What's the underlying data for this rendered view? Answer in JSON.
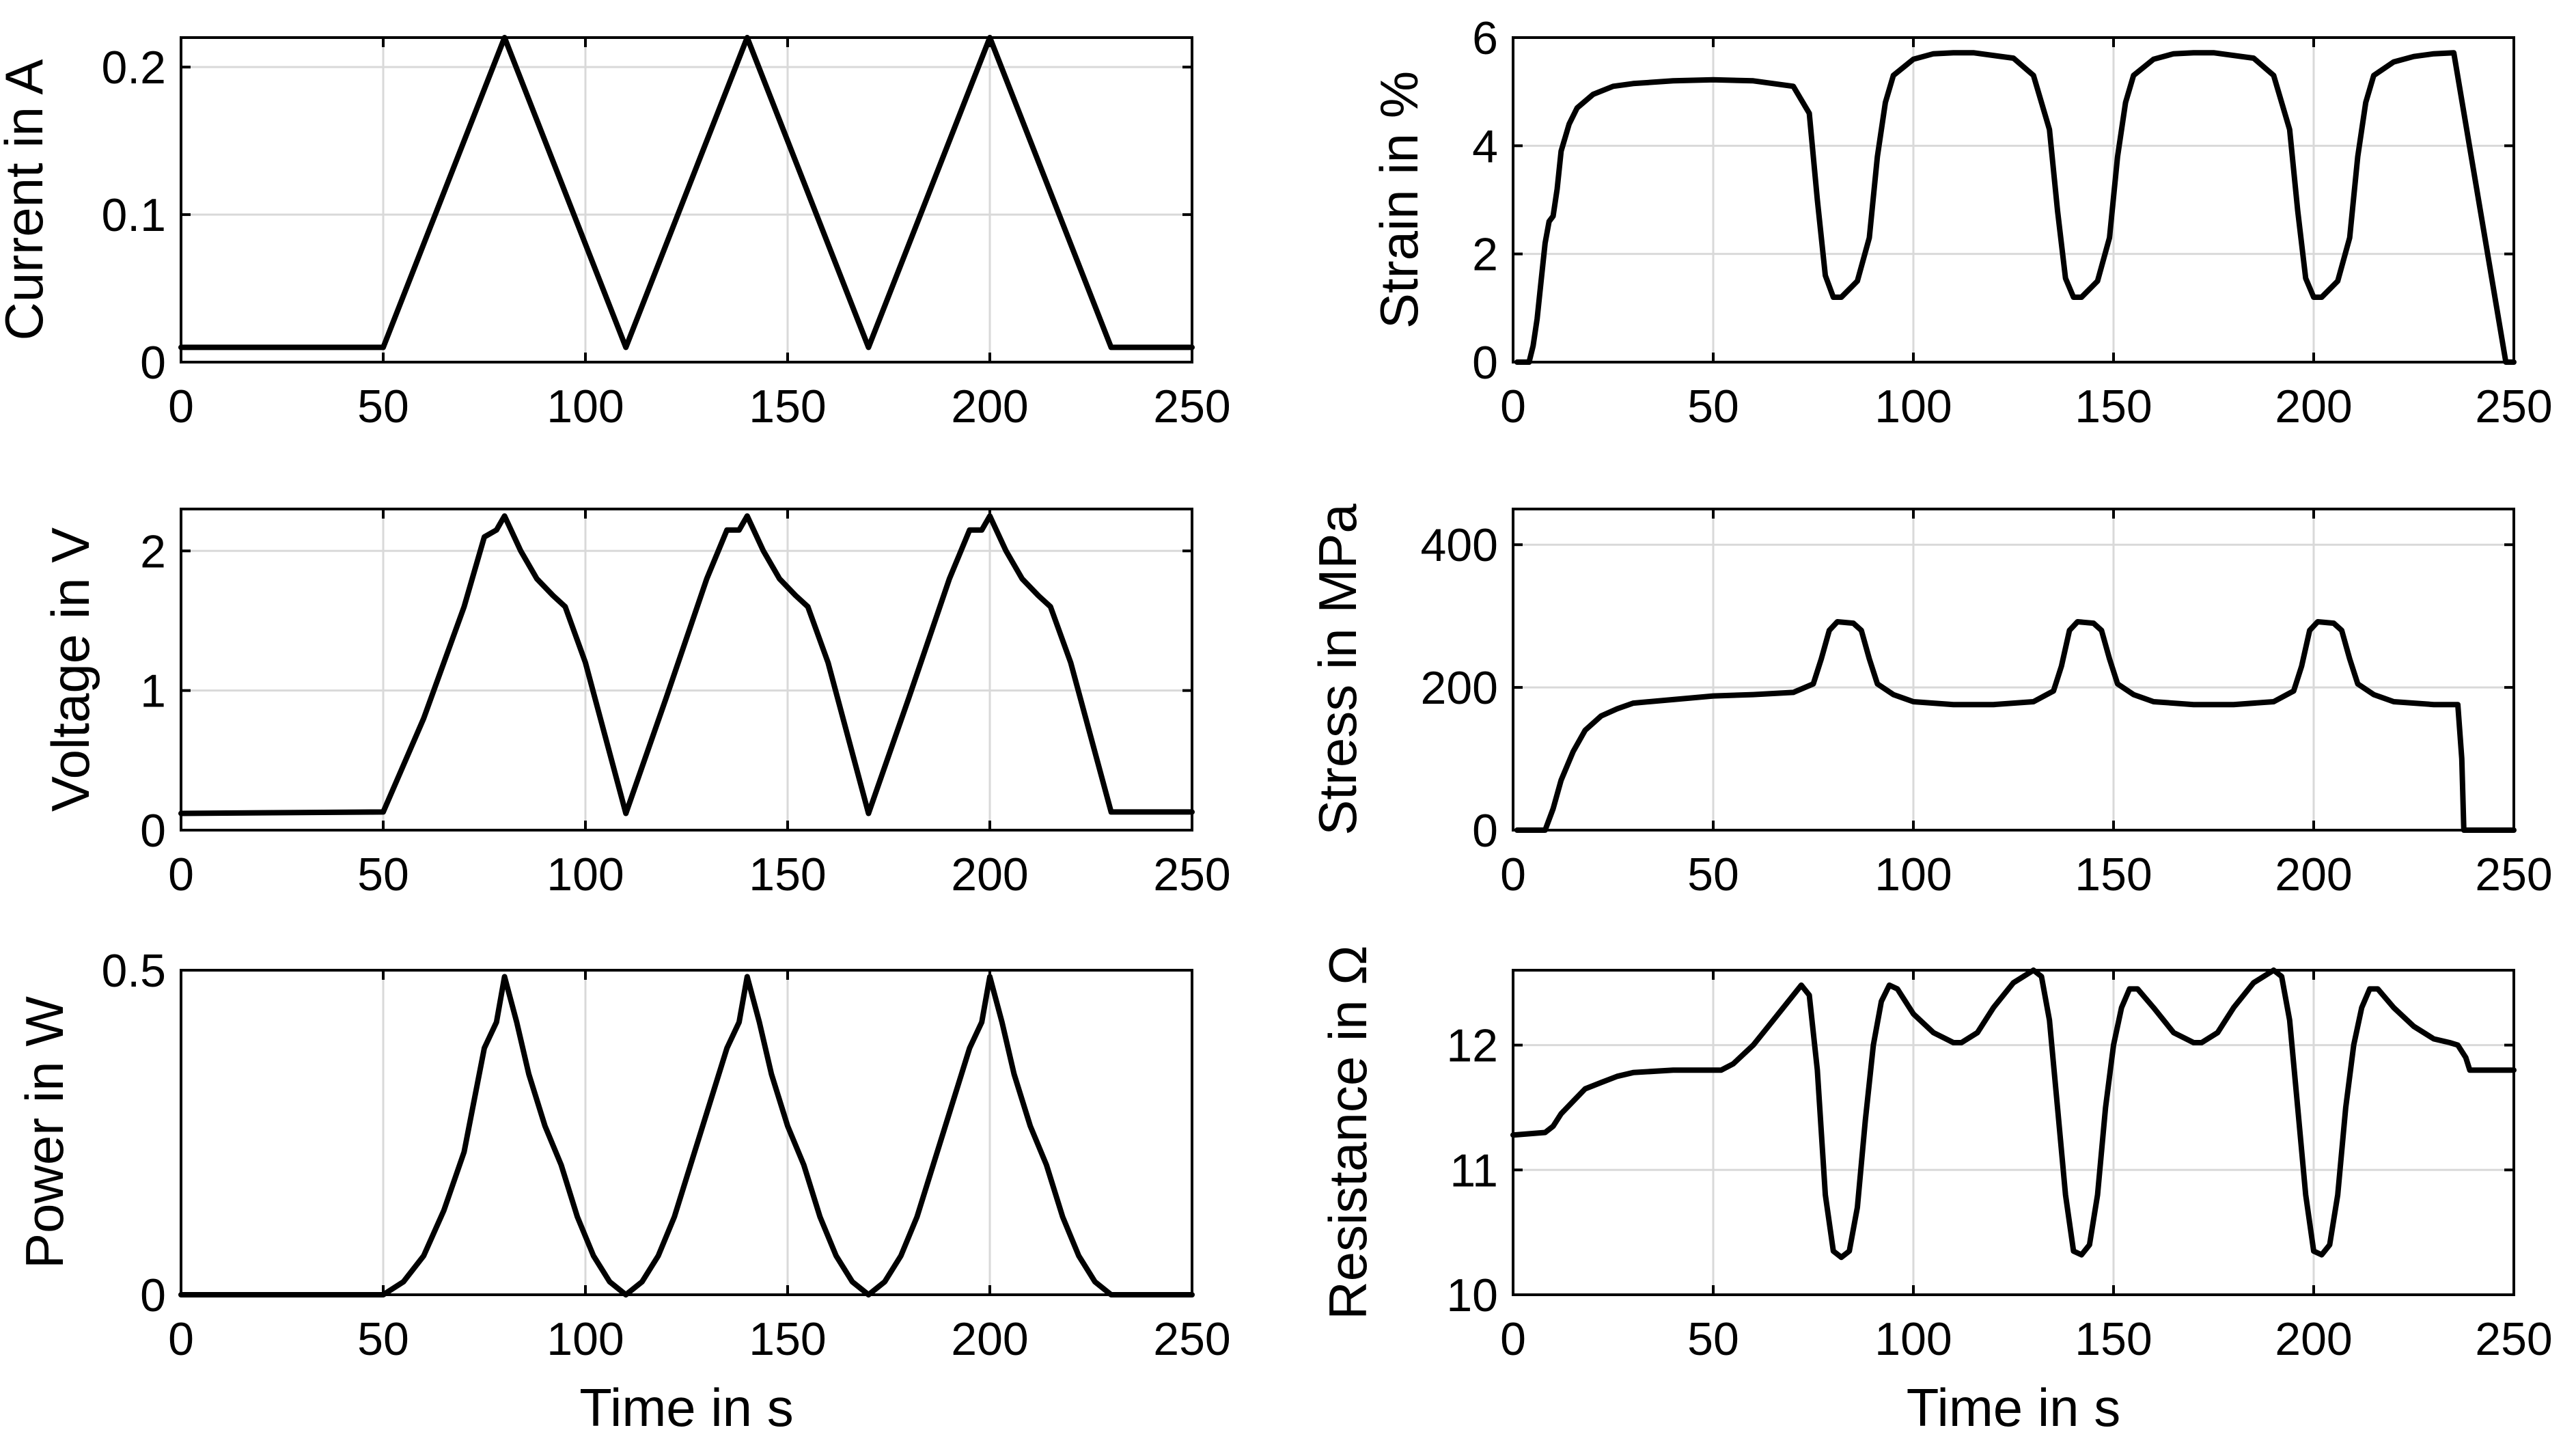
{
  "chart_data": [
    {
      "id": "current",
      "type": "line",
      "title": "",
      "xlabel": "",
      "ylabel": "Current in A",
      "xlim": [
        0,
        250
      ],
      "ylim": [
        0,
        0.22
      ],
      "xticks": [
        0,
        50,
        100,
        150,
        200,
        250
      ],
      "xtick_labels": [
        "0",
        "50",
        "100",
        "150",
        "200",
        "250"
      ],
      "yticks": [
        0,
        0.1,
        0.2
      ],
      "ytick_labels": [
        "0",
        "0.1",
        "0.2"
      ],
      "grid": true,
      "series": [
        {
          "name": "Current",
          "color": "#000000",
          "x": [
            0,
            50,
            80,
            110,
            140,
            170,
            200,
            230,
            250
          ],
          "y": [
            0.01,
            0.01,
            0.22,
            0.01,
            0.22,
            0.01,
            0.22,
            0.01,
            0.01
          ]
        }
      ]
    },
    {
      "id": "strain",
      "type": "line",
      "title": "",
      "xlabel": "",
      "ylabel": "Strain in %",
      "xlim": [
        0,
        250
      ],
      "ylim": [
        0,
        6
      ],
      "xticks": [
        0,
        50,
        100,
        150,
        200,
        250
      ],
      "xtick_labels": [
        "0",
        "50",
        "100",
        "150",
        "200",
        "250"
      ],
      "yticks": [
        0,
        2,
        4,
        6
      ],
      "ytick_labels": [
        "0",
        "2",
        "4",
        "6"
      ],
      "grid": true,
      "series": [
        {
          "name": "Strain",
          "color": "#000000",
          "x": [
            1,
            4,
            5,
            6,
            7,
            8,
            9,
            10,
            11,
            12,
            14,
            16,
            20,
            25,
            30,
            40,
            50,
            60,
            70,
            74,
            76,
            78,
            80,
            82,
            86,
            89,
            91,
            93,
            95,
            100,
            105,
            110,
            115,
            125,
            130,
            134,
            136,
            138,
            140,
            142,
            146,
            149,
            151,
            153,
            155,
            160,
            165,
            170,
            175,
            185,
            190,
            194,
            196,
            198,
            200,
            202,
            206,
            209,
            211,
            213,
            215,
            220,
            225,
            230,
            235,
            248,
            250
          ],
          "y": [
            0,
            0,
            0.3,
            0.8,
            1.5,
            2.2,
            2.6,
            2.7,
            3.2,
            3.9,
            4.4,
            4.7,
            4.95,
            5.1,
            5.15,
            5.2,
            5.22,
            5.2,
            5.1,
            4.6,
            3.0,
            1.6,
            1.2,
            1.2,
            1.5,
            2.3,
            3.8,
            4.8,
            5.3,
            5.6,
            5.7,
            5.72,
            5.72,
            5.62,
            5.3,
            4.3,
            2.8,
            1.55,
            1.2,
            1.2,
            1.5,
            2.3,
            3.8,
            4.8,
            5.3,
            5.6,
            5.7,
            5.72,
            5.72,
            5.62,
            5.3,
            4.3,
            2.8,
            1.55,
            1.2,
            1.2,
            1.5,
            2.3,
            3.8,
            4.8,
            5.3,
            5.55,
            5.65,
            5.7,
            5.72,
            0,
            0
          ]
        }
      ]
    },
    {
      "id": "voltage",
      "type": "line",
      "title": "",
      "xlabel": "",
      "ylabel": "Voltage in V",
      "xlim": [
        0,
        250
      ],
      "ylim": [
        0,
        2.3
      ],
      "xticks": [
        0,
        50,
        100,
        150,
        200,
        250
      ],
      "xtick_labels": [
        "0",
        "50",
        "100",
        "150",
        "200",
        "250"
      ],
      "yticks": [
        0,
        1,
        2
      ],
      "ytick_labels": [
        "0",
        "1",
        "2"
      ],
      "grid": true,
      "series": [
        {
          "name": "Voltage",
          "color": "#000000",
          "x": [
            0,
            50,
            60,
            70,
            75,
            78,
            80,
            84,
            88,
            92,
            95,
            100,
            110,
            120,
            130,
            135,
            138,
            140,
            144,
            148,
            152,
            155,
            160,
            170,
            180,
            190,
            195,
            198,
            200,
            204,
            208,
            212,
            215,
            220,
            230,
            250
          ],
          "y": [
            0.12,
            0.13,
            0.8,
            1.6,
            2.1,
            2.15,
            2.25,
            2.0,
            1.8,
            1.68,
            1.6,
            1.2,
            0.12,
            0.95,
            1.8,
            2.15,
            2.15,
            2.25,
            2.0,
            1.8,
            1.68,
            1.6,
            1.2,
            0.12,
            0.95,
            1.8,
            2.15,
            2.15,
            2.25,
            2.0,
            1.8,
            1.68,
            1.6,
            1.2,
            0.13,
            0.13
          ]
        }
      ]
    },
    {
      "id": "stress",
      "type": "line",
      "title": "",
      "xlabel": "",
      "ylabel": "Stress in MPa",
      "xlim": [
        0,
        250
      ],
      "ylim": [
        0,
        450
      ],
      "xticks": [
        0,
        50,
        100,
        150,
        200,
        250
      ],
      "xtick_labels": [
        "0",
        "50",
        "100",
        "150",
        "200",
        "250"
      ],
      "yticks": [
        0,
        200,
        400
      ],
      "ytick_labels": [
        "0",
        "200",
        "400"
      ],
      "grid": true,
      "series": [
        {
          "name": "Stress",
          "color": "#000000",
          "x": [
            1,
            8,
            10,
            12,
            15,
            18,
            22,
            26,
            30,
            40,
            50,
            60,
            70,
            75,
            77,
            79,
            81,
            85,
            87,
            89,
            91,
            95,
            100,
            110,
            120,
            130,
            135,
            137,
            139,
            141,
            145,
            147,
            149,
            151,
            155,
            160,
            170,
            180,
            190,
            195,
            197,
            199,
            201,
            205,
            207,
            209,
            211,
            215,
            220,
            230,
            236,
            237,
            237.5,
            250
          ],
          "y": [
            0,
            0,
            30,
            70,
            110,
            140,
            160,
            170,
            178,
            183,
            188,
            190,
            193,
            205,
            240,
            280,
            292,
            290,
            280,
            240,
            205,
            190,
            180,
            176,
            176,
            180,
            195,
            230,
            280,
            292,
            290,
            280,
            240,
            205,
            190,
            180,
            176,
            176,
            180,
            195,
            230,
            280,
            292,
            290,
            280,
            240,
            205,
            190,
            180,
            176,
            176,
            100,
            0,
            0
          ]
        }
      ]
    },
    {
      "id": "power",
      "type": "line",
      "title": "",
      "xlabel": "Time in s",
      "ylabel": "Power in W",
      "xlim": [
        0,
        250
      ],
      "ylim": [
        0,
        0.5
      ],
      "xticks": [
        0,
        50,
        100,
        150,
        200,
        250
      ],
      "xtick_labels": [
        "0",
        "50",
        "100",
        "150",
        "200",
        "250"
      ],
      "yticks": [
        0,
        0.5
      ],
      "ytick_labels": [
        "0",
        "0.5"
      ],
      "grid": true,
      "series": [
        {
          "name": "Power",
          "color": "#000000",
          "x": [
            0,
            50,
            55,
            60,
            65,
            70,
            75,
            78,
            80,
            83,
            86,
            90,
            94,
            98,
            102,
            106,
            110,
            114,
            118,
            122,
            126,
            130,
            135,
            138,
            140,
            143,
            146,
            150,
            154,
            158,
            162,
            166,
            170,
            174,
            178,
            182,
            186,
            190,
            195,
            198,
            200,
            203,
            206,
            210,
            214,
            218,
            222,
            226,
            230,
            250
          ],
          "y": [
            0,
            0,
            0.02,
            0.06,
            0.13,
            0.22,
            0.38,
            0.42,
            0.49,
            0.42,
            0.34,
            0.26,
            0.2,
            0.12,
            0.06,
            0.02,
            0,
            0.02,
            0.06,
            0.12,
            0.2,
            0.28,
            0.38,
            0.42,
            0.49,
            0.42,
            0.34,
            0.26,
            0.2,
            0.12,
            0.06,
            0.02,
            0,
            0.02,
            0.06,
            0.12,
            0.2,
            0.28,
            0.38,
            0.42,
            0.49,
            0.42,
            0.34,
            0.26,
            0.2,
            0.12,
            0.06,
            0.02,
            0,
            0
          ]
        }
      ]
    },
    {
      "id": "resistance",
      "type": "line",
      "title": "",
      "xlabel": "Time in s",
      "ylabel": "Resistance in Ω",
      "xlim": [
        0,
        250
      ],
      "ylim": [
        10,
        12.6
      ],
      "xticks": [
        0,
        50,
        100,
        150,
        200,
        250
      ],
      "xtick_labels": [
        "0",
        "50",
        "100",
        "150",
        "200",
        "250"
      ],
      "yticks": [
        10,
        11,
        12
      ],
      "ytick_labels": [
        "10",
        "11",
        "12"
      ],
      "grid": true,
      "series": [
        {
          "name": "Resistance",
          "color": "#000000",
          "x": [
            0,
            8,
            10,
            12,
            15,
            18,
            22,
            26,
            30,
            40,
            50,
            52,
            55,
            60,
            65,
            70,
            72,
            74,
            76,
            78,
            80,
            82,
            84,
            86,
            88,
            90,
            92,
            94,
            96,
            100,
            105,
            110,
            112,
            116,
            120,
            125,
            130,
            132,
            134,
            136,
            138,
            140,
            142,
            144,
            146,
            148,
            150,
            152,
            154,
            156,
            160,
            165,
            170,
            172,
            176,
            180,
            185,
            190,
            192,
            194,
            196,
            198,
            200,
            202,
            204,
            206,
            208,
            210,
            212,
            214,
            216,
            220,
            225,
            230,
            234,
            236,
            238,
            239,
            240,
            250
          ],
          "y": [
            11.28,
            11.3,
            11.35,
            11.45,
            11.55,
            11.65,
            11.7,
            11.75,
            11.78,
            11.8,
            11.8,
            11.8,
            11.85,
            12.0,
            12.2,
            12.4,
            12.48,
            12.4,
            11.8,
            10.8,
            10.35,
            10.3,
            10.35,
            10.7,
            11.4,
            12.0,
            12.35,
            12.48,
            12.45,
            12.25,
            12.1,
            12.02,
            12.02,
            12.1,
            12.3,
            12.5,
            12.6,
            12.55,
            12.2,
            11.5,
            10.8,
            10.35,
            10.32,
            10.4,
            10.8,
            11.5,
            12.0,
            12.3,
            12.45,
            12.45,
            12.3,
            12.1,
            12.02,
            12.02,
            12.1,
            12.3,
            12.5,
            12.6,
            12.55,
            12.2,
            11.5,
            10.8,
            10.35,
            10.32,
            10.4,
            10.8,
            11.5,
            12.0,
            12.3,
            12.45,
            12.45,
            12.3,
            12.15,
            12.05,
            12.02,
            12.0,
            11.9,
            11.8,
            11.8,
            11.8
          ]
        }
      ]
    }
  ]
}
